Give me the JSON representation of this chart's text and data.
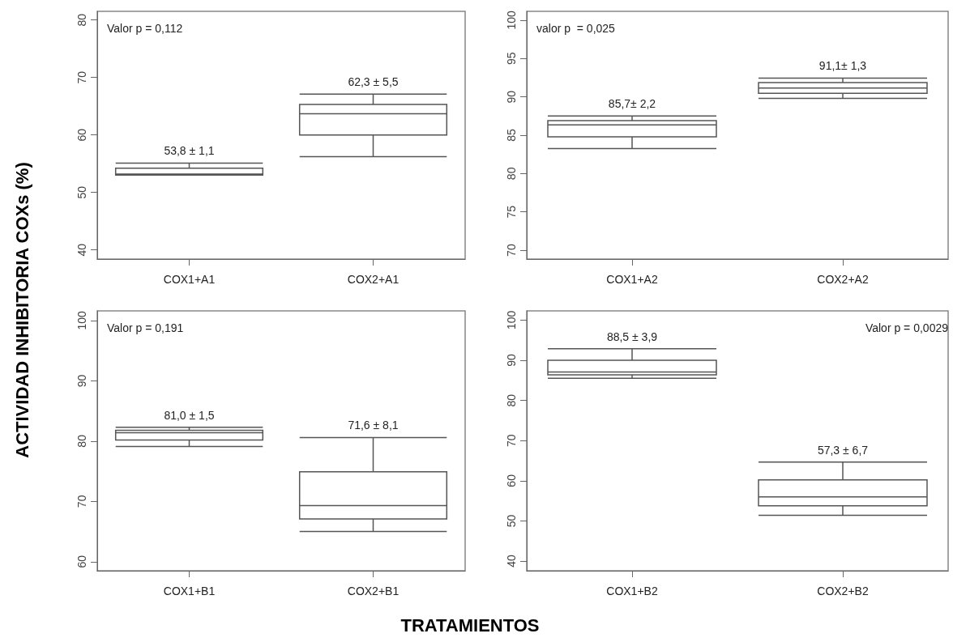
{
  "chart_data": [
    {
      "type": "box",
      "ylabel": "ACTIVIDAD INHIBITORIA COXs (%)",
      "categories": [
        "COX1+A1",
        "COX2+A1"
      ],
      "ylim": [
        38.4,
        81.5
      ],
      "yticks": [
        40,
        50,
        60,
        70,
        80
      ],
      "color": "#555555",
      "boxes": [
        {
          "low": 53.0,
          "q1": 53.0,
          "median": 53.2,
          "q3": 54.2,
          "high": 55.1
        },
        {
          "low": 56.2,
          "q1": 60.0,
          "median": 63.7,
          "q3": 65.3,
          "high": 67.1
        }
      ],
      "annotations": [
        "Valor p = 0,112",
        {
          "text": "53,8 ± 1,1",
          "x": "COX1+A1",
          "y": 55.1
        },
        {
          "text": "62,3 ± 5,5",
          "x": "COX2+A1",
          "y": 67.1
        }
      ]
    },
    {
      "type": "box",
      "categories": [
        "COX1+A2",
        "COX2+A2"
      ],
      "ylim": [
        68.85,
        101.15
      ],
      "yticks": [
        70,
        75,
        80,
        85,
        90,
        95,
        100
      ],
      "color": "#555555",
      "boxes": [
        {
          "low": 83.25,
          "q1": 84.8,
          "median": 86.35,
          "q3": 86.9,
          "high": 87.5
        },
        {
          "low": 89.8,
          "q1": 90.45,
          "median": 91.15,
          "q3": 91.85,
          "high": 92.45
        }
      ],
      "annotations": [
        "valor p  = 0,025",
        {
          "text": "85,7± 2,2",
          "x": "COX1+A2",
          "y": 87.5
        },
        {
          "text": "91,1± 1,3",
          "x": "COX2+A2",
          "y": 92.45
        }
      ]
    },
    {
      "type": "box",
      "xlabel": "TRATAMIENTOS",
      "categories": [
        "COX1+B1",
        "COX2+B1"
      ],
      "ylim": [
        58.5,
        101.6
      ],
      "yticks": [
        60,
        70,
        80,
        90,
        100
      ],
      "color": "#555555",
      "boxes": [
        {
          "low": 79.1,
          "q1": 80.2,
          "median": 81.4,
          "q3": 81.8,
          "high": 82.3
        },
        {
          "low": 65.0,
          "q1": 67.1,
          "median": 69.3,
          "q3": 74.9,
          "high": 80.6
        }
      ],
      "annotations": [
        "Valor p = 0,191",
        {
          "text": "81,0 ± 1,5",
          "x": "COX1+B1",
          "y": 82.3
        },
        {
          "text": "71,6 ± 8,1",
          "x": "COX2+B1",
          "y": 80.6
        }
      ]
    },
    {
      "type": "box",
      "categories": [
        "COX1+B2",
        "COX2+B2"
      ],
      "ylim": [
        37.6,
        102.3
      ],
      "yticks": [
        40,
        50,
        60,
        70,
        80,
        90,
        100
      ],
      "color": "#555555",
      "boxes": [
        {
          "low": 85.5,
          "q1": 86.4,
          "median": 87.1,
          "q3": 90.0,
          "high": 92.9
        },
        {
          "low": 51.4,
          "q1": 53.8,
          "median": 56.0,
          "q3": 60.2,
          "high": 64.65
        }
      ],
      "annotations": [
        "Valor p = 0,0029",
        {
          "text": "88,5 ± 3,9",
          "x": "COX1+B2",
          "y": 92.9
        },
        {
          "text": "57,3 ± 6,7",
          "x": "COX2+B2",
          "y": 64.65
        }
      ]
    }
  ]
}
